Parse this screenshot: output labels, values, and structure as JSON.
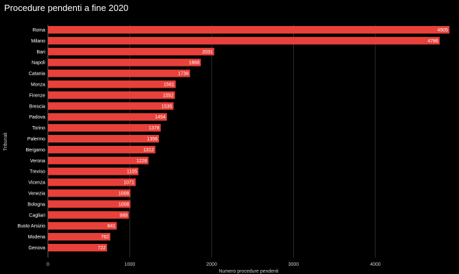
{
  "chart_data": {
    "type": "bar",
    "orientation": "horizontal",
    "title": "Procedure pendenti a fine 2020",
    "xlabel": "Numero procedure pendenti",
    "ylabel": "Tribunali",
    "xlim": [
      0,
      4905
    ],
    "xticks": [
      0,
      1000,
      2000,
      3000,
      4000
    ],
    "grid": true,
    "bar_color": "#e8403a",
    "background": "#000000",
    "categories": [
      "Roma",
      "Milano",
      "Bari",
      "Napoli",
      "Catania",
      "Monza",
      "Firenze",
      "Brescia",
      "Padova",
      "Torino",
      "Palermo",
      "Bergamo",
      "Verona",
      "Treviso",
      "Vicenza",
      "Venezia",
      "Bologna",
      "Cagliari",
      "Busto Arsizio",
      "Modena",
      "Genova"
    ],
    "values": [
      4905,
      4786,
      2031,
      1868,
      1736,
      1561,
      1552,
      1535,
      1454,
      1378,
      1356,
      1312,
      1228,
      1105,
      1071,
      1008,
      1008,
      989,
      841,
      762,
      722
    ]
  }
}
